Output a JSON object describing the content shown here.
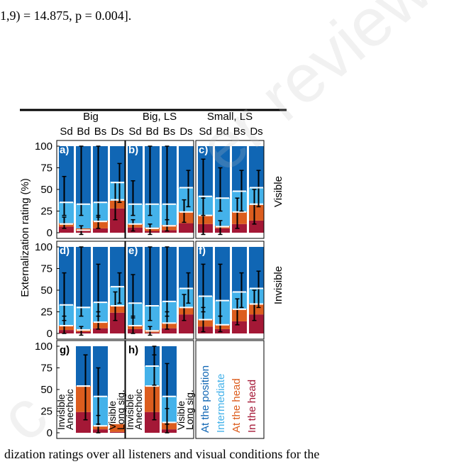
{
  "page": {
    "top_text": "1,9) = 14.875, p = 0.004].",
    "bottom_text": "dization ratings over all listeners and visual conditions for the",
    "watermark": "er review",
    "watermark2": "c"
  },
  "colors": {
    "at_position": "#1066b4",
    "intermediate": "#44b2ea",
    "at_head": "#dc5d1e",
    "in_head": "#a41836"
  },
  "chart_data": {
    "type": "bar",
    "ylabel": "Externalization rating (%)",
    "yticks": [
      0,
      25,
      50,
      75,
      100
    ],
    "ylim": [
      0,
      100
    ],
    "columns": [
      "Big",
      "Big, LS",
      "Small, LS"
    ],
    "rows": [
      "Visible",
      "Invisible"
    ],
    "categories": [
      "Sd",
      "Bd",
      "Bs",
      "Ds"
    ],
    "legend": [
      "At the position",
      "Intermediate",
      "At the head",
      "In the head"
    ],
    "panels": [
      {
        "label": "a)",
        "bars": [
          {
            "cat": "Sd",
            "seg": [
              7,
              4,
              24,
              65
            ],
            "err": [
              {
                "v": 10,
                "lo": 5,
                "hi": 18
              },
              {
                "v": 35,
                "lo": 20,
                "hi": 65
              }
            ]
          },
          {
            "cat": "Bd",
            "seg": [
              2,
              3,
              28,
              67
            ],
            "err": [
              {
                "v": 3,
                "lo": -2,
                "hi": 8
              },
              {
                "v": 33,
                "lo": 20,
                "hi": 100
              }
            ]
          },
          {
            "cat": "Bs",
            "seg": [
              5,
              9,
              21,
              65
            ],
            "err": [
              {
                "v": 13,
                "lo": 5,
                "hi": 20
              },
              {
                "v": 35,
                "lo": 18,
                "hi": 100
              }
            ]
          },
          {
            "cat": "Ds",
            "seg": [
              28,
              9,
              22,
              41
            ],
            "err": [
              {
                "v": 38,
                "lo": 15,
                "hi": 58
              },
              {
                "v": 58,
                "lo": 35,
                "hi": 80
              }
            ]
          }
        ]
      },
      {
        "label": "b)",
        "bars": [
          {
            "cat": "Sd",
            "seg": [
              6,
              4,
              23,
              67
            ],
            "err": [
              {
                "v": 10,
                "lo": 2,
                "hi": 15
              },
              {
                "v": 33,
                "lo": 20,
                "hi": 60
              }
            ]
          },
          {
            "cat": "Bd",
            "seg": [
              2,
              4,
              27,
              67
            ],
            "err": [
              {
                "v": 5,
                "lo": -2,
                "hi": 10
              },
              {
                "v": 33,
                "lo": 20,
                "hi": 100
              }
            ]
          },
          {
            "cat": "Bs",
            "seg": [
              3,
              6,
              24,
              67
            ],
            "err": [
              {
                "v": 8,
                "lo": 2,
                "hi": 15
              },
              {
                "v": 33,
                "lo": 15,
                "hi": 100
              }
            ]
          },
          {
            "cat": "Ds",
            "seg": [
              11,
              13,
              28,
              48
            ],
            "err": [
              {
                "v": 24,
                "lo": 12,
                "hi": 38
              },
              {
                "v": 52,
                "lo": 30,
                "hi": 72
              }
            ]
          }
        ]
      },
      {
        "label": "c)",
        "bars": [
          {
            "cat": "Sd",
            "seg": [
              10,
              10,
              22,
              58
            ],
            "err": [
              {
                "v": 20,
                "lo": -2,
                "hi": 40
              },
              {
                "v": 42,
                "lo": 20,
                "hi": 85
              }
            ]
          },
          {
            "cat": "Bd",
            "seg": [
              5,
              3,
              32,
              60
            ],
            "err": [
              {
                "v": 7,
                "lo": -2,
                "hi": 14
              },
              {
                "v": 40,
                "lo": 25,
                "hi": 75
              }
            ]
          },
          {
            "cat": "Bs",
            "seg": [
              10,
              14,
              24,
              52
            ],
            "err": [
              {
                "v": 24,
                "lo": 5,
                "hi": 40
              },
              {
                "v": 48,
                "lo": 25,
                "hi": 72
              }
            ]
          },
          {
            "cat": "Ds",
            "seg": [
              14,
              18,
              20,
              48
            ],
            "err": [
              {
                "v": 33,
                "lo": 10,
                "hi": 50
              },
              {
                "v": 52,
                "lo": 30,
                "hi": 72
              }
            ]
          }
        ]
      },
      {
        "label": "d)",
        "bars": [
          {
            "cat": "Sd",
            "seg": [
              4,
              5,
              24,
              67
            ],
            "err": [
              {
                "v": 9,
                "lo": 0,
                "hi": 20
              },
              {
                "v": 33,
                "lo": 15,
                "hi": 70
              }
            ]
          },
          {
            "cat": "Bd",
            "seg": [
              2,
              3,
              26,
              69
            ],
            "err": [
              {
                "v": 4,
                "lo": -2,
                "hi": 8
              },
              {
                "v": 30,
                "lo": 20,
                "hi": 100
              }
            ]
          },
          {
            "cat": "Bs",
            "seg": [
              6,
              7,
              23,
              64
            ],
            "err": [
              {
                "v": 13,
                "lo": 5,
                "hi": 25
              },
              {
                "v": 36,
                "lo": 20,
                "hi": 80
              }
            ]
          },
          {
            "cat": "Ds",
            "seg": [
              24,
              8,
              22,
              46
            ],
            "err": [
              {
                "v": 32,
                "lo": 15,
                "hi": 48
              },
              {
                "v": 54,
                "lo": 35,
                "hi": 70
              }
            ]
          }
        ]
      },
      {
        "label": "e)",
        "bars": [
          {
            "cat": "Sd",
            "seg": [
              5,
              4,
              26,
              65
            ],
            "err": [
              {
                "v": 9,
                "lo": 0,
                "hi": 20
              },
              {
                "v": 35,
                "lo": 18,
                "hi": 68
              }
            ]
          },
          {
            "cat": "Bd",
            "seg": [
              1,
              3,
              28,
              68
            ],
            "err": [
              {
                "v": 3,
                "lo": -2,
                "hi": 8
              },
              {
                "v": 32,
                "lo": 15,
                "hi": 100
              }
            ]
          },
          {
            "cat": "Bs",
            "seg": [
              6,
              6,
              25,
              63
            ],
            "err": [
              {
                "v": 12,
                "lo": 5,
                "hi": 25
              },
              {
                "v": 37,
                "lo": 20,
                "hi": 100
              }
            ]
          },
          {
            "cat": "Ds",
            "seg": [
              22,
              8,
              22,
              48
            ],
            "err": [
              {
                "v": 30,
                "lo": 15,
                "hi": 45
              },
              {
                "v": 52,
                "lo": 35,
                "hi": 70
              }
            ]
          }
        ]
      },
      {
        "label": "f)",
        "bars": [
          {
            "cat": "Sd",
            "seg": [
              8,
              8,
              27,
              57
            ],
            "err": [
              {
                "v": 16,
                "lo": 2,
                "hi": 30
              },
              {
                "v": 43,
                "lo": 25,
                "hi": 80
              }
            ]
          },
          {
            "cat": "Bd",
            "seg": [
              5,
              5,
              28,
              62
            ],
            "err": [
              {
                "v": 10,
                "lo": 2,
                "hi": 20
              },
              {
                "v": 38,
                "lo": 20,
                "hi": 80
              }
            ]
          },
          {
            "cat": "Bs",
            "seg": [
              14,
              14,
              20,
              52
            ],
            "err": [
              {
                "v": 28,
                "lo": 10,
                "hi": 40
              },
              {
                "v": 48,
                "lo": 30,
                "hi": 70
              }
            ]
          },
          {
            "cat": "Ds",
            "seg": [
              22,
              12,
              18,
              48
            ],
            "err": [
              {
                "v": 34,
                "lo": 15,
                "hi": 50
              },
              {
                "v": 52,
                "lo": 30,
                "hi": 72
              }
            ]
          }
        ]
      },
      {
        "label": "g)",
        "bars": [
          {
            "cat": "Sd",
            "seg": [
              0,
              0,
              0,
              0
            ],
            "err": [],
            "text": [
              "Invisible",
              "Anechoic"
            ]
          },
          {
            "cat": "Bd",
            "seg": [
              24,
              30,
              0,
              46
            ],
            "err": [
              {
                "v": 54,
                "lo": 15,
                "hi": 90
              },
              {
                "v": 54,
                "lo": 15,
                "hi": 90
              }
            ]
          },
          {
            "cat": "Bs",
            "seg": [
              4,
              4,
              34,
              58
            ],
            "err": [
              {
                "v": 8,
                "lo": 0,
                "hi": 20
              },
              {
                "v": 42,
                "lo": 10,
                "hi": 75
              }
            ]
          },
          {
            "cat": "Ds",
            "seg": [
              1,
              9,
              0,
              0
            ],
            "err": [],
            "text": [
              "Visible",
              "Long sig."
            ]
          }
        ]
      },
      {
        "label": "h)",
        "bars": [
          {
            "cat": "Sd",
            "seg": [
              0,
              0,
              0,
              0
            ],
            "err": [],
            "text": [
              "Invisible",
              "Anechoic"
            ]
          },
          {
            "cat": "Bd",
            "seg": [
              24,
              30,
              23,
              23
            ],
            "err": [
              {
                "v": 54,
                "lo": 15,
                "hi": 90
              },
              {
                "v": 77,
                "lo": 55,
                "hi": 100
              }
            ]
          },
          {
            "cat": "Bs",
            "seg": [
              4,
              8,
              30,
              58
            ],
            "err": [
              {
                "v": 12,
                "lo": 0,
                "hi": 28
              },
              {
                "v": 42,
                "lo": 10,
                "hi": 80
              }
            ]
          },
          {
            "cat": "Ds",
            "seg": [
              0,
              0,
              0,
              0
            ],
            "err": [],
            "text": [
              "Visible",
              "Long sig."
            ]
          }
        ]
      }
    ]
  }
}
